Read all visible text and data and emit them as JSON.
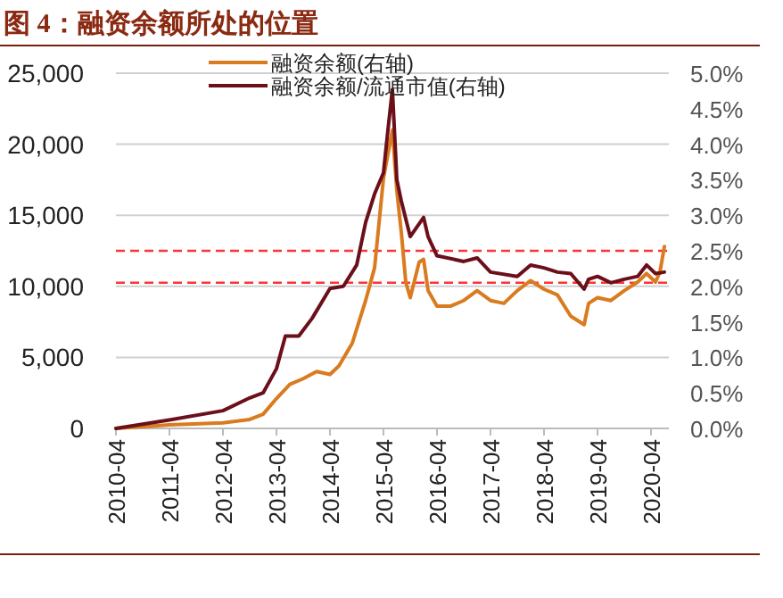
{
  "chart_data": {
    "type": "line",
    "title": "图 4：融资余额所处的位置",
    "xlim": [
      "2010-04",
      "2020-08"
    ],
    "xticks": [
      "2010-04",
      "2011-04",
      "2012-04",
      "2013-04",
      "2014-04",
      "2015-04",
      "2016-04",
      "2017-04",
      "2018-04",
      "2019-04",
      "2020-04"
    ],
    "ylim": [
      0,
      25000
    ],
    "yticks": [
      {
        "value": 0,
        "label": "0"
      },
      {
        "value": 5000,
        "label": "5,000"
      },
      {
        "value": 10000,
        "label": "10,000"
      },
      {
        "value": 15000,
        "label": "15,000"
      },
      {
        "value": 20000,
        "label": "20,000"
      },
      {
        "value": 25000,
        "label": "25,000"
      }
    ],
    "y2lim": [
      0,
      5
    ],
    "y2ticks": [
      {
        "value": 0,
        "label": "0.0%"
      },
      {
        "value": 0.5,
        "label": "0.5%"
      },
      {
        "value": 1,
        "label": "1.0%"
      },
      {
        "value": 1.5,
        "label": "1.5%"
      },
      {
        "value": 2,
        "label": "2.0%"
      },
      {
        "value": 2.5,
        "label": "2.5%"
      },
      {
        "value": 3,
        "label": "3.0%"
      },
      {
        "value": 3.5,
        "label": "3.5%"
      },
      {
        "value": 4,
        "label": "4.0%"
      },
      {
        "value": 4.5,
        "label": "4.5%"
      },
      {
        "value": 5,
        "label": "5.0%"
      }
    ],
    "grid": "y",
    "legend": "top",
    "line_style": "solid",
    "marker": "none",
    "series": [
      {
        "name": "融资余额(右轴)",
        "color": "#d97b1e",
        "x": [
          "2010-04",
          "2011-04",
          "2012-04",
          "2012-10",
          "2013-01",
          "2013-04",
          "2013-07",
          "2013-10",
          "2014-01",
          "2014-04",
          "2014-06",
          "2014-09",
          "2014-12",
          "2015-02",
          "2015-04",
          "2015-06",
          "2015-07",
          "2015-08",
          "2015-09",
          "2015-10",
          "2015-12",
          "2016-01",
          "2016-02",
          "2016-04",
          "2016-07",
          "2016-10",
          "2017-01",
          "2017-04",
          "2017-07",
          "2017-10",
          "2018-01",
          "2018-04",
          "2018-07",
          "2018-10",
          "2019-01",
          "2019-02",
          "2019-04",
          "2019-07",
          "2019-10",
          "2020-01",
          "2020-03",
          "2020-05",
          "2020-06",
          "2020-07"
        ],
        "values": [
          0,
          250,
          400,
          630,
          1000,
          2100,
          3100,
          3500,
          4000,
          3800,
          4400,
          6000,
          9000,
          11300,
          17600,
          21000,
          16700,
          13800,
          10300,
          9200,
          11700,
          11900,
          9700,
          8600,
          8600,
          9000,
          9700,
          9000,
          8800,
          9700,
          10400,
          9800,
          9400,
          7900,
          7300,
          8800,
          9200,
          9000,
          9700,
          10300,
          10900,
          10300,
          11000,
          12800
        ]
      },
      {
        "name": "融资余额/流通市值(右轴)",
        "color": "#6b0f1a",
        "axis": "y2",
        "x": [
          "2010-04",
          "2011-04",
          "2012-04",
          "2012-10",
          "2013-01",
          "2013-04",
          "2013-06",
          "2013-09",
          "2013-12",
          "2014-04",
          "2014-07",
          "2014-10",
          "2014-12",
          "2015-02",
          "2015-04",
          "2015-05",
          "2015-06",
          "2015-07",
          "2015-08",
          "2015-10",
          "2016-01",
          "2016-02",
          "2016-04",
          "2016-10",
          "2017-01",
          "2017-04",
          "2017-10",
          "2018-01",
          "2018-04",
          "2018-07",
          "2018-10",
          "2019-01",
          "2019-02",
          "2019-04",
          "2019-07",
          "2019-10",
          "2020-01",
          "2020-03",
          "2020-05",
          "2020-07"
        ],
        "values": [
          0,
          0.12,
          0.25,
          0.43,
          0.5,
          0.84,
          1.3,
          1.3,
          1.55,
          1.97,
          2.0,
          2.3,
          2.9,
          3.3,
          3.6,
          4.2,
          4.77,
          3.5,
          3.2,
          2.7,
          2.97,
          2.7,
          2.43,
          2.35,
          2.4,
          2.2,
          2.14,
          2.3,
          2.26,
          2.2,
          2.18,
          1.96,
          2.1,
          2.14,
          2.05,
          2.1,
          2.14,
          2.3,
          2.18,
          2.2
        ]
      }
    ],
    "ref_lines": [
      {
        "axis": "y2",
        "value": 2.5,
        "color": "#ff3333",
        "line_style": "dashed"
      },
      {
        "axis": "y2",
        "value": 2.05,
        "color": "#ff3333",
        "line_style": "dashed"
      }
    ]
  }
}
